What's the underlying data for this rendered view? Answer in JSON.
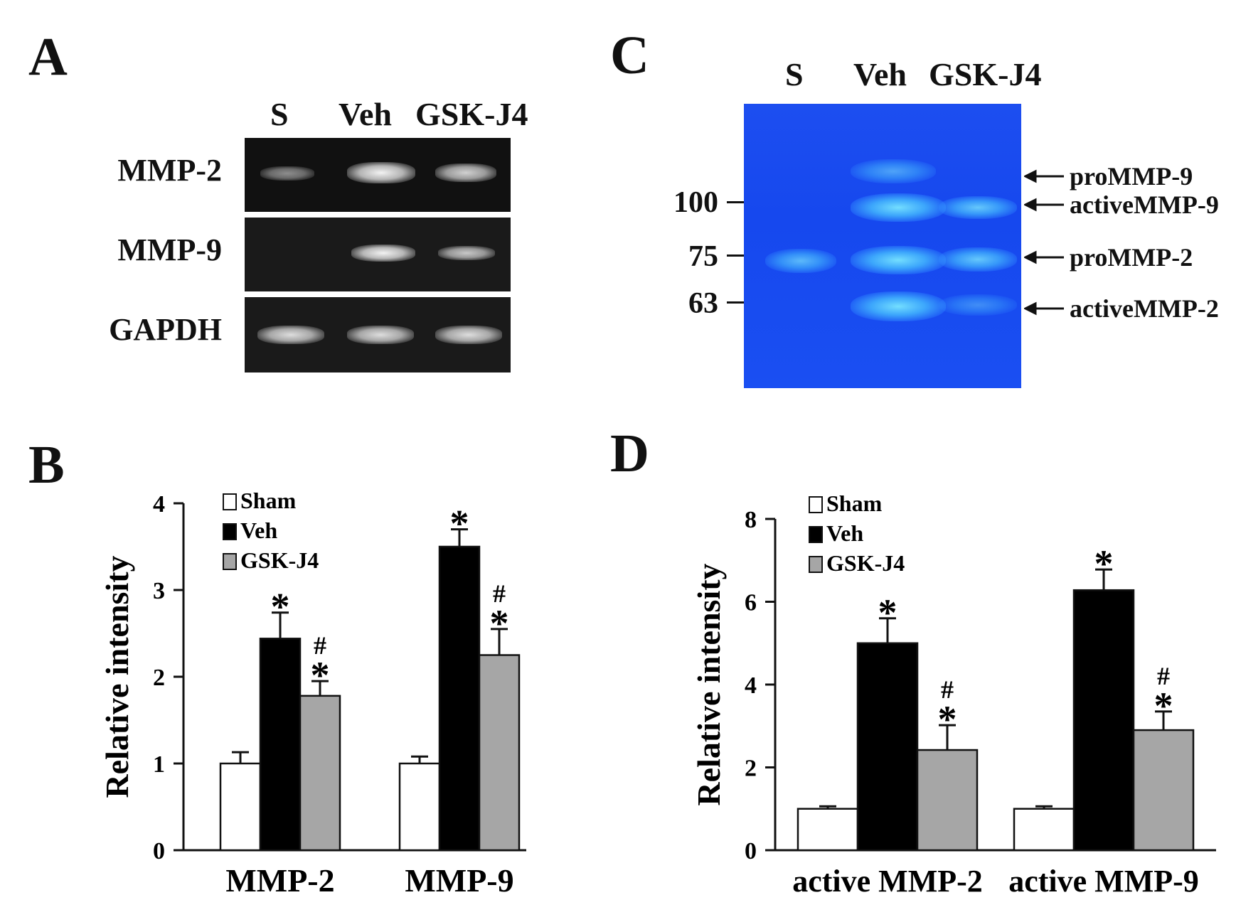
{
  "panels": {
    "A": {
      "letter": "A",
      "lanes": [
        "S",
        "Veh",
        "GSK-J4"
      ],
      "rows": [
        "MMP-2",
        "MMP-9",
        "GAPDH"
      ]
    },
    "C": {
      "letter": "C",
      "lanes": [
        "S",
        "Veh",
        "GSK-J4"
      ],
      "mw_markers": [
        "100",
        "75",
        "63"
      ],
      "band_labels": [
        "proMMP-9",
        "activeMMP-9",
        "proMMP-2",
        "activeMMP-2"
      ]
    },
    "B": {
      "letter": "B"
    },
    "D": {
      "letter": "D"
    }
  },
  "chart_data": [
    {
      "panel": "B",
      "type": "bar",
      "categories": [
        "MMP-2",
        "MMP-9"
      ],
      "ylabel": "Relative intensity",
      "ylim": [
        0,
        4
      ],
      "yticks": [
        "0",
        "1",
        "2",
        "3",
        "4"
      ],
      "series": [
        {
          "name": "Sham",
          "color": "#ffffff",
          "values": [
            1.0,
            1.0
          ],
          "errors": [
            0.13,
            0.08
          ],
          "markers": [
            "",
            ""
          ]
        },
        {
          "name": "Veh",
          "color": "#000000",
          "values": [
            2.44,
            3.5
          ],
          "errors": [
            0.3,
            0.2
          ],
          "markers": [
            "*",
            "*"
          ]
        },
        {
          "name": "GSK-J4",
          "color": "#a6a6a6",
          "values": [
            1.78,
            2.25
          ],
          "errors": [
            0.17,
            0.3
          ],
          "markers": [
            "#\n*",
            "#\n*"
          ]
        }
      ],
      "legend": "top-left"
    },
    {
      "panel": "D",
      "type": "bar",
      "categories": [
        "active MMP-2",
        "active MMP-9"
      ],
      "ylabel": "Relative intensity",
      "ylim": [
        0,
        8
      ],
      "yticks": [
        "0",
        "2",
        "4",
        "6",
        "8"
      ],
      "series": [
        {
          "name": "Sham",
          "color": "#ffffff",
          "values": [
            1.0,
            1.0
          ],
          "errors": [
            0.06,
            0.06
          ],
          "markers": [
            "",
            ""
          ]
        },
        {
          "name": "Veh",
          "color": "#000000",
          "values": [
            5.0,
            6.28
          ],
          "errors": [
            0.6,
            0.5
          ],
          "markers": [
            "*",
            "*"
          ]
        },
        {
          "name": "GSK-J4",
          "color": "#a6a6a6",
          "values": [
            2.42,
            2.9
          ],
          "errors": [
            0.6,
            0.45
          ],
          "markers": [
            "#\n*",
            "#\n*"
          ]
        }
      ],
      "legend": "top-left"
    }
  ]
}
